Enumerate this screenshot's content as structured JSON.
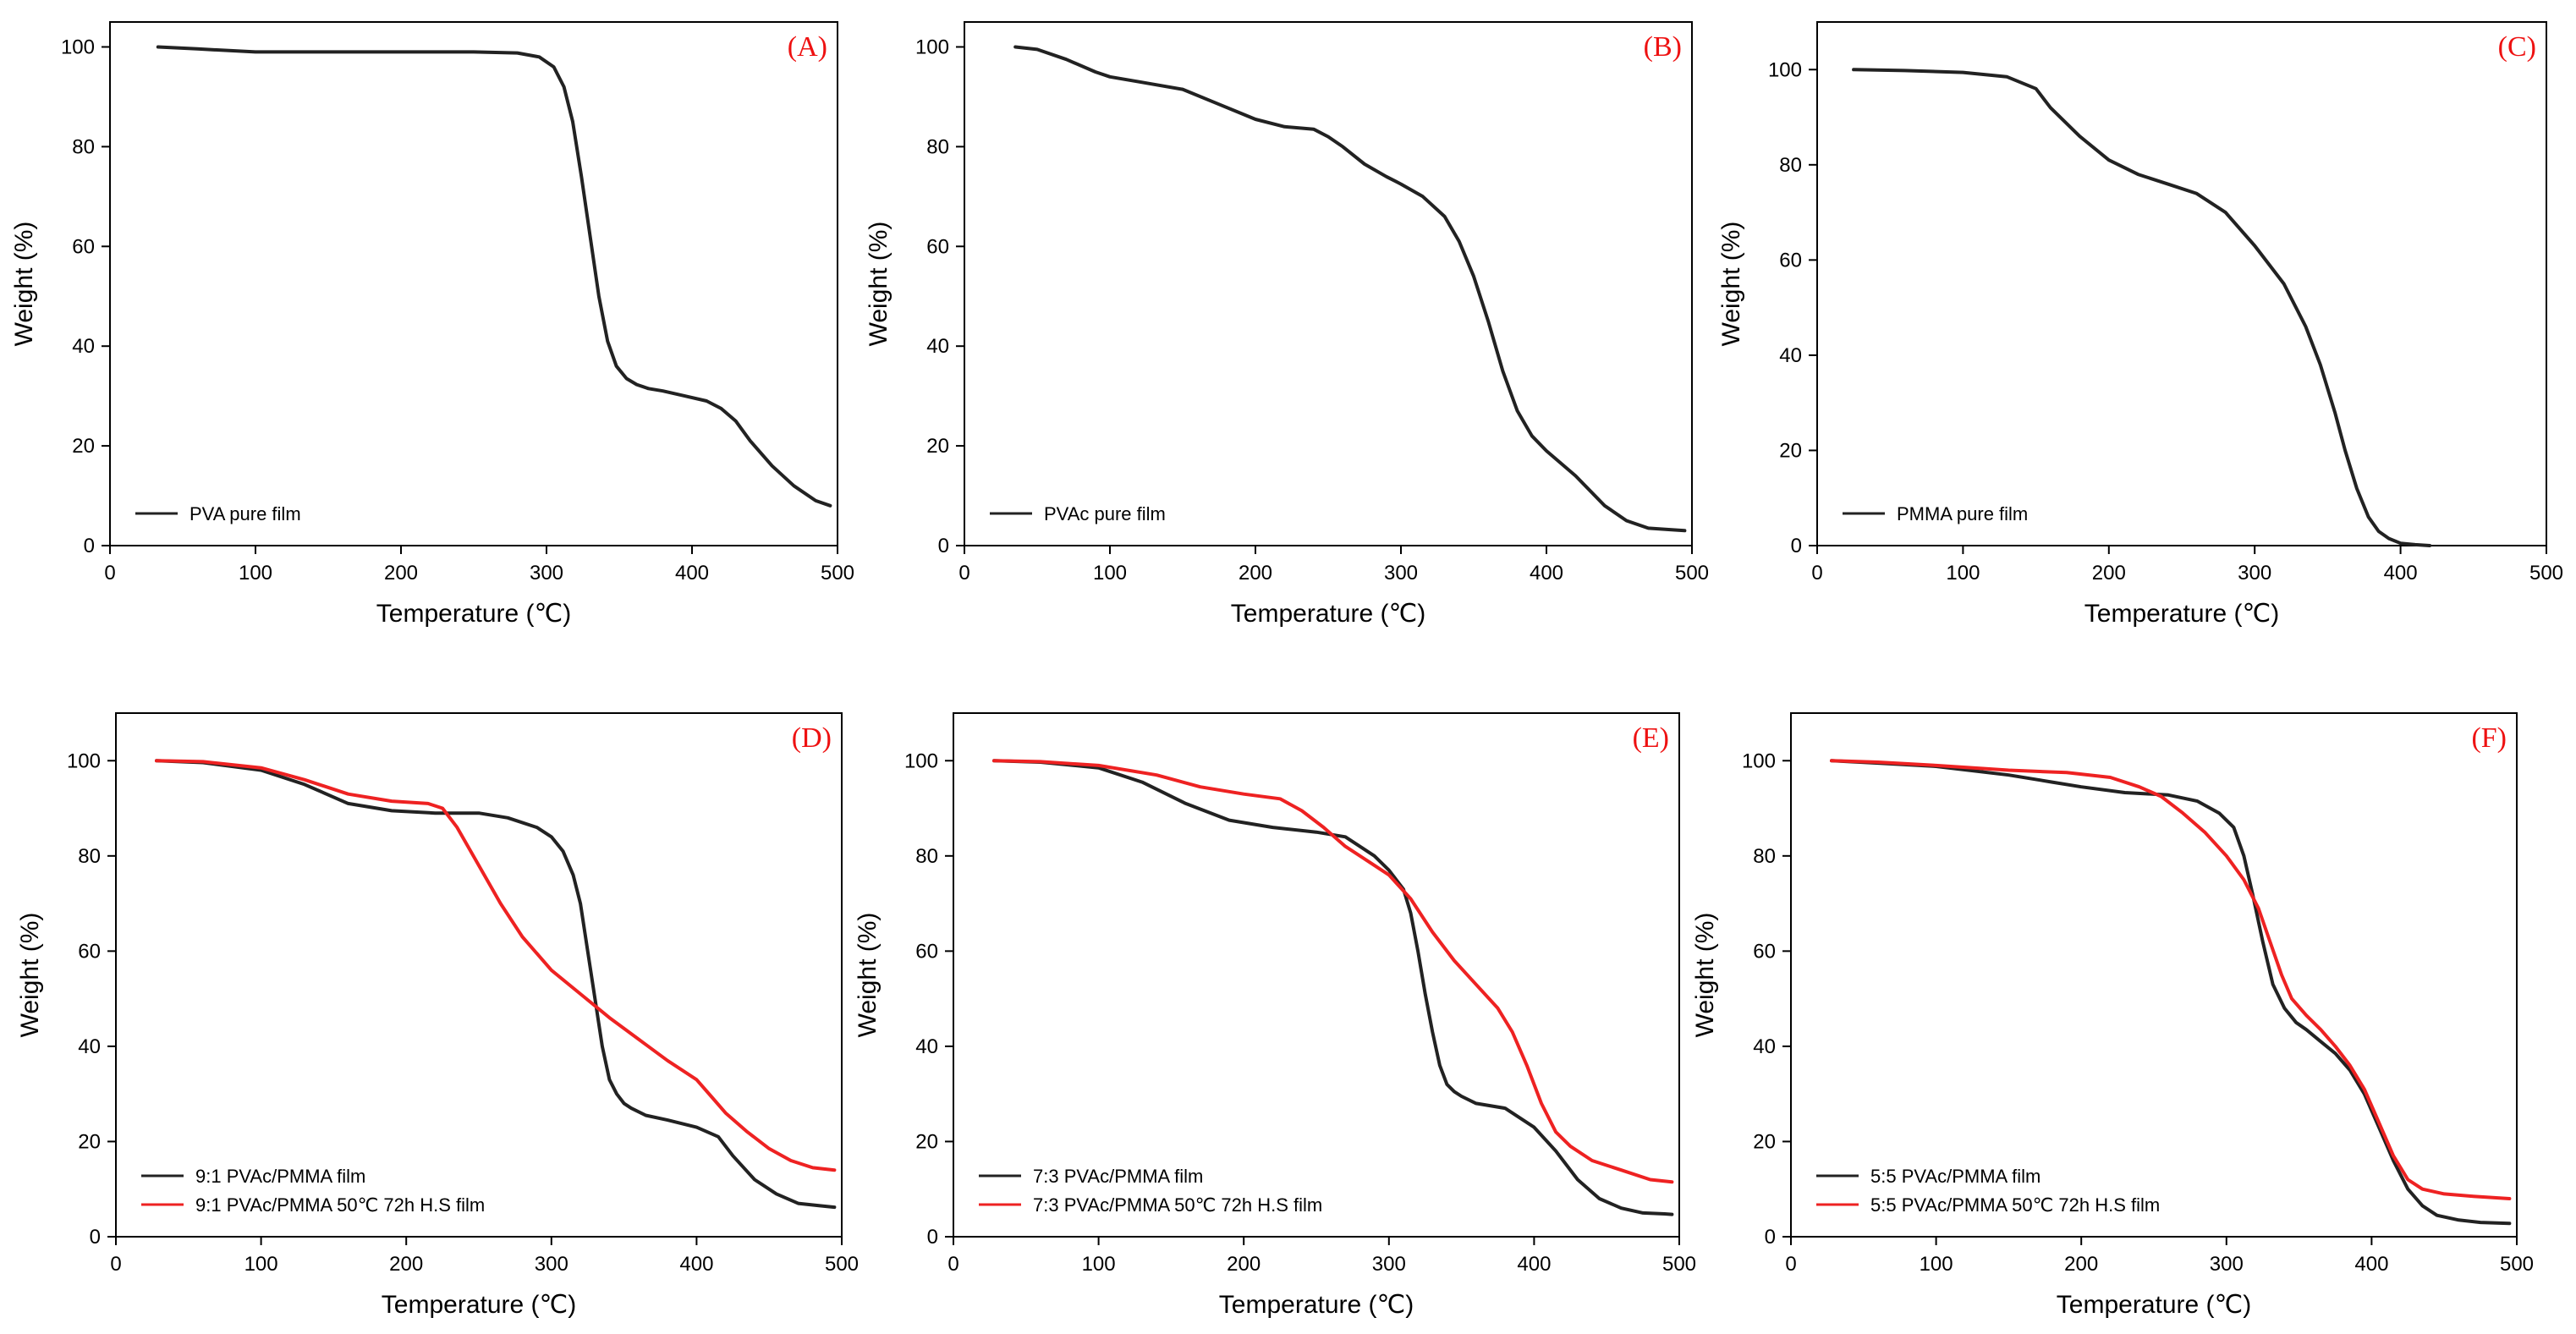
{
  "colors": {
    "black_series": "#222222",
    "red_series": "#ee2222",
    "label": "#ee1111",
    "axis": "#000000"
  },
  "chart_data": [
    {
      "panel": "A",
      "label": "(A)",
      "type": "line",
      "xlabel": "Temperature (℃)",
      "ylabel": "Weight (%)",
      "xlim": [
        0,
        500
      ],
      "ylim": [
        0,
        105
      ],
      "xticks": [
        "0",
        "100",
        "200",
        "300",
        "400",
        "500"
      ],
      "yticks": [
        "0",
        "20",
        "40",
        "60",
        "80",
        "100"
      ],
      "legend": "bottom-left",
      "series": [
        {
          "name": "PVA pure film",
          "color": "black_series",
          "x": [
            33,
            60,
            100,
            150,
            200,
            250,
            280,
            295,
            305,
            312,
            318,
            324,
            330,
            336,
            342,
            348,
            355,
            362,
            370,
            380,
            395,
            410,
            420,
            430,
            440,
            455,
            470,
            485,
            495
          ],
          "y": [
            100,
            99.6,
            99,
            99,
            99,
            99,
            98.8,
            98,
            96,
            92,
            85,
            74,
            62,
            50,
            41,
            36,
            33.5,
            32.3,
            31.5,
            31,
            30,
            29,
            27.5,
            25,
            21,
            16,
            12,
            9,
            8
          ]
        }
      ]
    },
    {
      "panel": "B",
      "label": "(B)",
      "type": "line",
      "xlabel": "Temperature (℃)",
      "ylabel": "Weight (%)",
      "xlim": [
        0,
        500
      ],
      "ylim": [
        0,
        105
      ],
      "xticks": [
        "0",
        "100",
        "200",
        "300",
        "400",
        "500"
      ],
      "yticks": [
        "0",
        "20",
        "40",
        "60",
        "80",
        "100"
      ],
      "legend": "bottom-left",
      "series": [
        {
          "name": "PVAc pure film",
          "color": "black_series",
          "x": [
            35,
            50,
            70,
            90,
            100,
            120,
            150,
            175,
            200,
            220,
            240,
            250,
            260,
            275,
            290,
            300,
            315,
            330,
            340,
            350,
            360,
            370,
            380,
            390,
            400,
            420,
            440,
            455,
            470,
            485,
            495
          ],
          "y": [
            100,
            99.5,
            97.5,
            95,
            94,
            93,
            91.5,
            88.5,
            85.5,
            84,
            83.5,
            82,
            80,
            76.5,
            74,
            72.5,
            70,
            66,
            61,
            54,
            45,
            35,
            27,
            22,
            19,
            14,
            8,
            5,
            3.5,
            3.2,
            3
          ]
        }
      ]
    },
    {
      "panel": "C",
      "label": "(C)",
      "type": "line",
      "xlabel": "Temperature (℃)",
      "ylabel": "Weight (%)",
      "xlim": [
        0,
        500
      ],
      "ylim": [
        0,
        110
      ],
      "xticks": [
        "0",
        "100",
        "200",
        "300",
        "400",
        "500"
      ],
      "yticks": [
        "0",
        "20",
        "40",
        "60",
        "80",
        "100"
      ],
      "legend": "bottom-left",
      "series": [
        {
          "name": "PMMA pure film",
          "color": "black_series",
          "x": [
            25,
            60,
            100,
            130,
            150,
            160,
            180,
            200,
            220,
            240,
            260,
            280,
            300,
            320,
            335,
            345,
            355,
            362,
            370,
            378,
            385,
            392,
            400,
            410,
            420
          ],
          "y": [
            100,
            99.8,
            99.4,
            98.5,
            96,
            92,
            86,
            81,
            78,
            76,
            74,
            70,
            63,
            55,
            46,
            38,
            28,
            20,
            12,
            6,
            3,
            1.5,
            0.5,
            0.2,
            0
          ]
        }
      ]
    },
    {
      "panel": "D",
      "label": "(D)",
      "type": "line",
      "xlabel": "Temperature (℃)",
      "ylabel": "Weight (%)",
      "xlim": [
        0,
        500
      ],
      "ylim": [
        0,
        110
      ],
      "xticks": [
        "0",
        "100",
        "200",
        "300",
        "400",
        "500"
      ],
      "yticks": [
        "0",
        "20",
        "40",
        "60",
        "80",
        "100"
      ],
      "legend": "bottom-left",
      "series": [
        {
          "name": "9:1 PVAc/PMMA film",
          "color": "black_series",
          "x": [
            28,
            60,
            100,
            130,
            160,
            190,
            220,
            250,
            270,
            290,
            300,
            308,
            315,
            320,
            325,
            330,
            335,
            340,
            345,
            350,
            355,
            365,
            380,
            400,
            415,
            425,
            440,
            455,
            470,
            485,
            495
          ],
          "y": [
            100,
            99.6,
            98,
            95,
            91,
            89.5,
            89,
            89,
            88,
            86,
            84,
            81,
            76,
            70,
            60,
            50,
            40,
            33,
            30,
            28,
            27,
            25.5,
            24.5,
            23,
            21,
            17,
            12,
            9,
            7,
            6.5,
            6.2
          ]
        },
        {
          "name": "9:1 PVAc/PMMA 50℃ 72h H.S film",
          "color": "red_series",
          "x": [
            28,
            60,
            100,
            130,
            160,
            190,
            215,
            225,
            235,
            250,
            265,
            280,
            300,
            320,
            340,
            360,
            380,
            400,
            410,
            420,
            435,
            450,
            465,
            480,
            495
          ],
          "y": [
            100,
            99.8,
            98.5,
            96,
            93,
            91.5,
            91,
            90,
            86,
            78,
            70,
            63,
            56,
            51,
            46,
            41.5,
            37,
            33,
            29.5,
            26,
            22,
            18.5,
            16,
            14.5,
            14
          ]
        }
      ]
    },
    {
      "panel": "E",
      "label": "(E)",
      "type": "line",
      "xlabel": "Temperature (℃)",
      "ylabel": "Weight (%)",
      "xlim": [
        0,
        500
      ],
      "ylim": [
        0,
        110
      ],
      "xticks": [
        "0",
        "100",
        "200",
        "300",
        "400",
        "500"
      ],
      "yticks": [
        "0",
        "20",
        "40",
        "60",
        "80",
        "100"
      ],
      "legend": "bottom-left",
      "series": [
        {
          "name": "7:3 PVAc/PMMA film",
          "color": "black_series",
          "x": [
            28,
            60,
            100,
            130,
            160,
            190,
            220,
            250,
            270,
            290,
            300,
            310,
            315,
            320,
            325,
            330,
            335,
            340,
            345,
            350,
            360,
            380,
            400,
            415,
            430,
            445,
            460,
            475,
            490,
            495
          ],
          "y": [
            100,
            99.7,
            98.5,
            95.5,
            91,
            87.5,
            86,
            85,
            84,
            80,
            77,
            73,
            68,
            60,
            51,
            43,
            36,
            32,
            30.5,
            29.5,
            28,
            27,
            23,
            18,
            12,
            8,
            6,
            5,
            4.8,
            4.7
          ]
        },
        {
          "name": "7:3 PVAc/PMMA 50℃ 72h H.S film",
          "color": "red_series",
          "x": [
            28,
            60,
            100,
            140,
            170,
            200,
            225,
            240,
            255,
            270,
            285,
            300,
            315,
            330,
            345,
            360,
            375,
            385,
            395,
            405,
            415,
            425,
            440,
            460,
            480,
            495
          ],
          "y": [
            100,
            99.8,
            99,
            97,
            94.5,
            93,
            92,
            89.5,
            86,
            82,
            79,
            76,
            71,
            64,
            58,
            53,
            48,
            43,
            36,
            28,
            22,
            19,
            16,
            14,
            12,
            11.5
          ]
        }
      ]
    },
    {
      "panel": "F",
      "label": "(F)",
      "type": "line",
      "xlabel": "Temperature (℃)",
      "ylabel": "Weight (%)",
      "xlim": [
        0,
        500
      ],
      "ylim": [
        0,
        110
      ],
      "xticks": [
        "0",
        "100",
        "200",
        "300",
        "400",
        "500"
      ],
      "yticks": [
        "0",
        "20",
        "40",
        "60",
        "80",
        "100"
      ],
      "legend": "bottom-left",
      "series": [
        {
          "name": "5:5 PVAc/PMMA film",
          "color": "black_series",
          "x": [
            28,
            60,
            100,
            150,
            180,
            200,
            230,
            260,
            280,
            295,
            305,
            312,
            318,
            325,
            332,
            340,
            348,
            355,
            365,
            375,
            385,
            395,
            405,
            415,
            425,
            435,
            445,
            460,
            475,
            495
          ],
          "y": [
            100,
            99.5,
            98.8,
            97,
            95.5,
            94.5,
            93.3,
            92.8,
            91.5,
            89,
            86,
            80,
            72,
            62,
            53,
            48,
            45,
            43.5,
            41,
            38.5,
            35,
            30,
            23,
            16,
            10,
            6.5,
            4.5,
            3.5,
            3,
            2.8
          ]
        },
        {
          "name": "5:5 PVAc/PMMA 50℃ 72h H.S film",
          "color": "red_series",
          "x": [
            28,
            60,
            100,
            150,
            190,
            220,
            240,
            255,
            270,
            285,
            300,
            312,
            322,
            330,
            338,
            345,
            355,
            365,
            375,
            385,
            395,
            405,
            415,
            425,
            435,
            450,
            470,
            495
          ],
          "y": [
            100,
            99.7,
            99,
            98,
            97.5,
            96.5,
            94.5,
            92.5,
            89,
            85,
            80,
            75,
            69,
            62,
            55,
            50,
            46.5,
            43.5,
            40,
            36,
            31,
            24,
            17,
            12,
            10,
            9,
            8.5,
            8
          ]
        }
      ]
    }
  ]
}
